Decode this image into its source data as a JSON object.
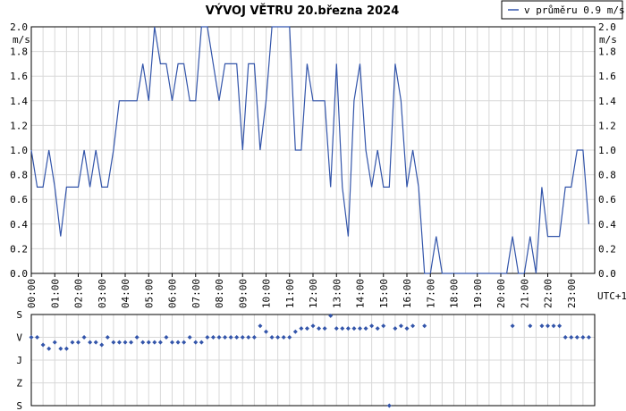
{
  "chart_data": [
    {
      "type": "line",
      "title": "VÝVOJ VĚTRU  20.března 2024",
      "ylabel": "m/s",
      "xlabel": "UTC+1",
      "ylim": [
        0,
        2.0
      ],
      "yticks": [
        "0.0",
        "0.2",
        "0.4",
        "0.6",
        "0.8",
        "1.0",
        "1.2",
        "1.4",
        "1.6",
        "1.8",
        "2.0"
      ],
      "xticks": [
        "00:00",
        "01:00",
        "02:00",
        "03:00",
        "04:00",
        "05:00",
        "06:00",
        "07:00",
        "08:00",
        "09:00",
        "10:00",
        "11:00",
        "12:00",
        "13:00",
        "14:00",
        "15:00",
        "16:00",
        "17:00",
        "18:00",
        "19:00",
        "20:00",
        "21:00",
        "22:00",
        "23:00"
      ],
      "grid": true,
      "legend_position": "top-right",
      "colors": {
        "line": "#3355aa",
        "grid": "#d8d8d8",
        "axis": "#000000"
      },
      "series": [
        {
          "name": "v průměru 0.9 m/s",
          "points": [
            [
              0.0,
              1.0
            ],
            [
              0.25,
              0.7
            ],
            [
              0.5,
              0.7
            ],
            [
              0.75,
              1.0
            ],
            [
              1.0,
              0.7
            ],
            [
              1.25,
              0.3
            ],
            [
              1.5,
              0.7
            ],
            [
              1.75,
              0.7
            ],
            [
              2.0,
              0.7
            ],
            [
              2.25,
              1.0
            ],
            [
              2.5,
              0.7
            ],
            [
              2.75,
              1.0
            ],
            [
              3.0,
              0.7
            ],
            [
              3.25,
              0.7
            ],
            [
              3.5,
              1.0
            ],
            [
              3.75,
              1.4
            ],
            [
              4.0,
              1.4
            ],
            [
              4.25,
              1.4
            ],
            [
              4.5,
              1.4
            ],
            [
              4.75,
              1.7
            ],
            [
              5.0,
              1.4
            ],
            [
              5.25,
              2.0
            ],
            [
              5.5,
              1.7
            ],
            [
              5.75,
              1.7
            ],
            [
              6.0,
              1.4
            ],
            [
              6.25,
              1.7
            ],
            [
              6.5,
              1.7
            ],
            [
              6.75,
              1.4
            ],
            [
              7.0,
              1.4
            ],
            [
              7.25,
              2.0
            ],
            [
              7.5,
              2.0
            ],
            [
              7.75,
              1.7
            ],
            [
              8.0,
              1.4
            ],
            [
              8.25,
              1.7
            ],
            [
              8.5,
              1.7
            ],
            [
              8.75,
              1.7
            ],
            [
              9.0,
              1.0
            ],
            [
              9.25,
              1.7
            ],
            [
              9.5,
              1.7
            ],
            [
              9.75,
              1.0
            ],
            [
              10.0,
              1.4
            ],
            [
              10.25,
              2.0
            ],
            [
              10.5,
              2.0
            ],
            [
              10.75,
              2.0
            ],
            [
              11.0,
              2.0
            ],
            [
              11.25,
              1.0
            ],
            [
              11.5,
              1.0
            ],
            [
              11.75,
              1.7
            ],
            [
              12.0,
              1.4
            ],
            [
              12.25,
              1.4
            ],
            [
              12.5,
              1.4
            ],
            [
              12.75,
              0.7
            ],
            [
              13.0,
              1.7
            ],
            [
              13.25,
              0.7
            ],
            [
              13.5,
              0.3
            ],
            [
              13.75,
              1.4
            ],
            [
              14.0,
              1.7
            ],
            [
              14.25,
              1.0
            ],
            [
              14.5,
              0.7
            ],
            [
              14.75,
              1.0
            ],
            [
              15.0,
              0.7
            ],
            [
              15.25,
              0.7
            ],
            [
              15.5,
              1.7
            ],
            [
              15.75,
              1.4
            ],
            [
              16.0,
              0.7
            ],
            [
              16.25,
              1.0
            ],
            [
              16.5,
              0.7
            ],
            [
              16.75,
              0.0
            ],
            [
              17.0,
              0.0
            ],
            [
              17.25,
              0.3
            ],
            [
              17.5,
              0.0
            ],
            [
              17.75,
              0.0
            ],
            [
              18.0,
              0.0
            ],
            [
              18.25,
              0.0
            ],
            [
              18.5,
              0.0
            ],
            [
              18.75,
              0.0
            ],
            [
              19.0,
              0.0
            ],
            [
              19.25,
              0.0
            ],
            [
              19.5,
              0.0
            ],
            [
              19.75,
              0.0
            ],
            [
              20.0,
              0.0
            ],
            [
              20.25,
              0.0
            ],
            [
              20.5,
              0.3
            ],
            [
              20.75,
              0.0
            ],
            [
              21.0,
              0.0
            ],
            [
              21.25,
              0.3
            ],
            [
              21.5,
              0.0
            ],
            [
              21.75,
              0.7
            ],
            [
              22.0,
              0.3
            ],
            [
              22.25,
              0.3
            ],
            [
              22.5,
              0.3
            ],
            [
              22.75,
              0.7
            ],
            [
              23.0,
              0.7
            ],
            [
              23.25,
              1.0
            ],
            [
              23.5,
              1.0
            ],
            [
              23.75,
              0.4
            ]
          ]
        }
      ]
    },
    {
      "type": "scatter",
      "title": "",
      "yticks": [
        "S",
        "V",
        "J",
        "Z",
        "S"
      ],
      "yticks_bottom_to_top": [
        "S",
        "Z",
        "J",
        "V",
        "S"
      ],
      "ylim": [
        0,
        360
      ],
      "xlim": [
        0,
        24
      ],
      "grid": true,
      "colors": {
        "point": "#3355aa"
      },
      "series": [
        {
          "points": [
            [
              0.0,
              270
            ],
            [
              0.25,
              270
            ],
            [
              0.5,
              240
            ],
            [
              0.75,
              225
            ],
            [
              1.0,
              250
            ],
            [
              1.25,
              225
            ],
            [
              1.5,
              225
            ],
            [
              1.75,
              250
            ],
            [
              2.0,
              250
            ],
            [
              2.25,
              270
            ],
            [
              2.5,
              250
            ],
            [
              2.75,
              250
            ],
            [
              3.0,
              240
            ],
            [
              3.25,
              270
            ],
            [
              3.5,
              250
            ],
            [
              3.75,
              250
            ],
            [
              4.0,
              250
            ],
            [
              4.25,
              250
            ],
            [
              4.5,
              270
            ],
            [
              4.75,
              250
            ],
            [
              5.0,
              250
            ],
            [
              5.25,
              250
            ],
            [
              5.5,
              250
            ],
            [
              5.75,
              270
            ],
            [
              6.0,
              250
            ],
            [
              6.25,
              250
            ],
            [
              6.5,
              250
            ],
            [
              6.75,
              270
            ],
            [
              7.0,
              250
            ],
            [
              7.25,
              250
            ],
            [
              7.5,
              270
            ],
            [
              7.75,
              270
            ],
            [
              8.0,
              270
            ],
            [
              8.25,
              270
            ],
            [
              8.5,
              270
            ],
            [
              8.75,
              270
            ],
            [
              9.0,
              270
            ],
            [
              9.25,
              270
            ],
            [
              9.5,
              270
            ],
            [
              9.75,
              315
            ],
            [
              10.0,
              292
            ],
            [
              10.25,
              270
            ],
            [
              10.5,
              270
            ],
            [
              10.75,
              270
            ],
            [
              11.0,
              270
            ],
            [
              11.25,
              292
            ],
            [
              11.5,
              305
            ],
            [
              11.75,
              305
            ],
            [
              12.0,
              315
            ],
            [
              12.25,
              305
            ],
            [
              12.5,
              305
            ],
            [
              12.75,
              355
            ],
            [
              13.0,
              305
            ],
            [
              13.25,
              305
            ],
            [
              13.5,
              305
            ],
            [
              13.75,
              305
            ],
            [
              14.0,
              305
            ],
            [
              14.25,
              305
            ],
            [
              14.5,
              315
            ],
            [
              14.75,
              305
            ],
            [
              15.0,
              315
            ],
            [
              15.25,
              0
            ],
            [
              15.5,
              305
            ],
            [
              15.75,
              315
            ],
            [
              16.0,
              305
            ],
            [
              16.25,
              315
            ],
            [
              16.75,
              315
            ],
            [
              20.5,
              315
            ],
            [
              21.25,
              315
            ],
            [
              21.75,
              315
            ],
            [
              22.0,
              315
            ],
            [
              22.25,
              315
            ],
            [
              22.5,
              315
            ],
            [
              22.75,
              270
            ],
            [
              23.0,
              270
            ],
            [
              23.25,
              270
            ],
            [
              23.5,
              270
            ],
            [
              23.75,
              270
            ]
          ]
        }
      ]
    }
  ]
}
